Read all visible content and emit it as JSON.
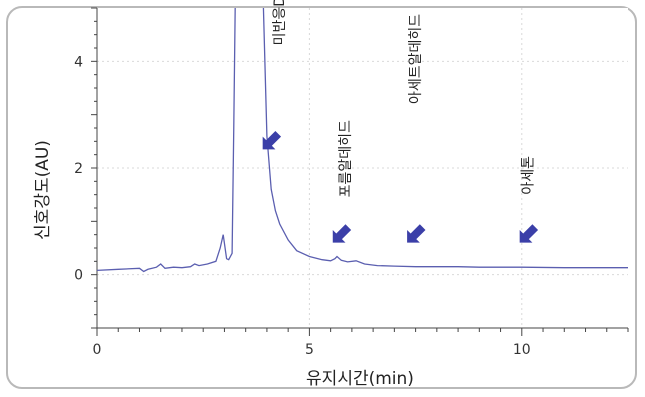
{
  "chart_data": {
    "type": "line",
    "xlabel": "유지시간(min)",
    "ylabel": "신호강도(AU)",
    "xlim": [
      0,
      12.5
    ],
    "ylim": [
      -1,
      5
    ],
    "xticks": [
      0,
      5,
      10
    ],
    "yticks": [
      0,
      2,
      4
    ],
    "xtick_labels": [
      "0",
      "5",
      "10"
    ],
    "ytick_labels": [
      "0",
      "2",
      "4"
    ],
    "grid": true,
    "line_color": "#5b5fb0",
    "arrow_color": "#3b3fa8",
    "series": [
      {
        "x": [
          0,
          0.5,
          1.0,
          1.1,
          1.2,
          1.3,
          1.4,
          1.5,
          1.6,
          1.8,
          2.0,
          2.2,
          2.3,
          2.4,
          2.6,
          2.8,
          2.9,
          2.97,
          3.05,
          3.1,
          3.18,
          3.22,
          3.26,
          3.3,
          3.35,
          3.4,
          3.5,
          3.6,
          3.7,
          3.8,
          3.9,
          4.0,
          4.1,
          4.2,
          4.3,
          4.5,
          4.7,
          5.0,
          5.3,
          5.5,
          5.6,
          5.65,
          5.75,
          5.9,
          6.1,
          6.3,
          6.6,
          7.0,
          7.5,
          8.0,
          8.5,
          9.0,
          10.0,
          11.0,
          12.0,
          12.5
        ],
        "y": [
          0.08,
          0.1,
          0.12,
          0.06,
          0.1,
          0.12,
          0.14,
          0.2,
          0.12,
          0.14,
          0.13,
          0.15,
          0.2,
          0.17,
          0.2,
          0.25,
          0.5,
          0.75,
          0.3,
          0.28,
          0.4,
          2.8,
          5.5,
          5.5,
          5.5,
          5.5,
          5.5,
          5.5,
          5.5,
          5.5,
          5.5,
          2.6,
          1.6,
          1.2,
          0.95,
          0.65,
          0.45,
          0.34,
          0.28,
          0.26,
          0.3,
          0.34,
          0.27,
          0.24,
          0.26,
          0.2,
          0.17,
          0.16,
          0.15,
          0.15,
          0.15,
          0.14,
          0.14,
          0.13,
          0.13,
          0.13
        ]
      }
    ],
    "annotations": [
      {
        "label": "미반응DNPH",
        "x": 4.4,
        "y": 4.3,
        "arrow_x": 3.9,
        "arrow_y": 2.35
      },
      {
        "label": "포름알데히드",
        "x": 5.95,
        "y": 1.45,
        "arrow_x": 5.55,
        "arrow_y": 0.6
      },
      {
        "label": "아세트알데히드",
        "x": 7.6,
        "y": 3.2,
        "arrow_x": 7.3,
        "arrow_y": 0.6
      },
      {
        "label": "아세톤",
        "x": 10.25,
        "y": 1.5,
        "arrow_x": 9.95,
        "arrow_y": 0.6
      }
    ]
  }
}
